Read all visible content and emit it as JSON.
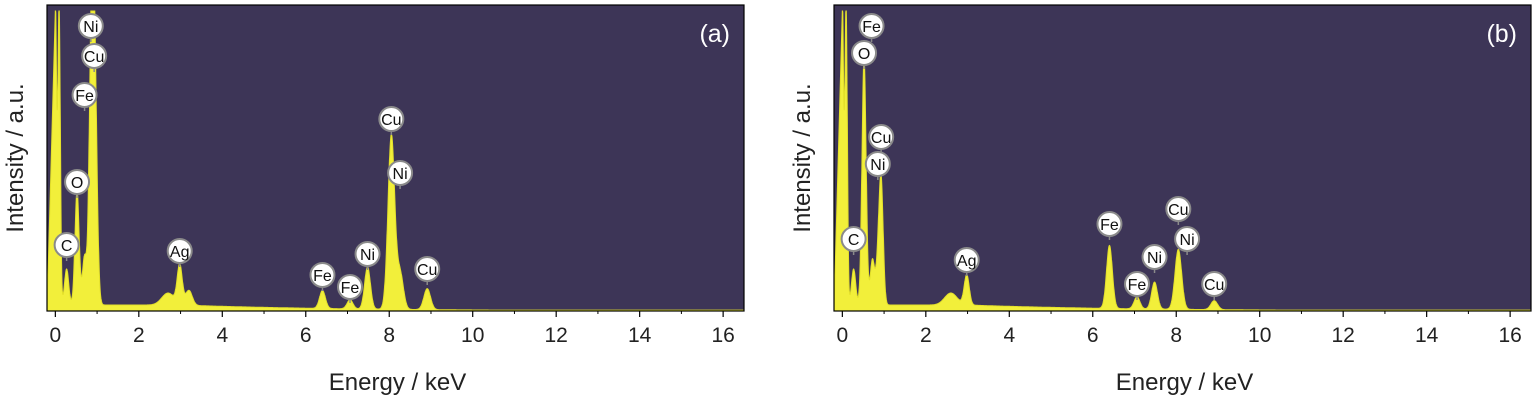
{
  "colors": {
    "plot_background": "#3d3557",
    "spectrum_fill": "#f2ef3a",
    "spectrum_stroke": "#e3e02a",
    "marker_fill": "#ffffff",
    "marker_stroke": "#8a8a8a",
    "axis": "#000000"
  },
  "chart_data": [
    {
      "type": "area",
      "panel_label": "(a)",
      "xlabel": "Energy / keV",
      "ylabel": "Intensity / a.u.",
      "xlim": [
        -0.2,
        16.5
      ],
      "ylim": [
        0,
        100
      ],
      "xticks": [
        0,
        2,
        4,
        6,
        8,
        10,
        12,
        14,
        16
      ],
      "y_ticks_shown": false,
      "grid": false,
      "background_level": 2,
      "spectrum": [
        {
          "energy": 0.0,
          "intensity": 100,
          "width": 0.03
        },
        {
          "energy": 0.09,
          "intensity": 100,
          "width": 0.03
        },
        {
          "energy": 0.27,
          "intensity": 12,
          "width": 0.05
        },
        {
          "energy": 0.52,
          "intensity": 38,
          "width": 0.05
        },
        {
          "energy": 0.7,
          "intensity": 16,
          "width": 0.05
        },
        {
          "energy": 0.85,
          "intensity": 60,
          "width": 0.05
        },
        {
          "energy": 0.93,
          "intensity": 92,
          "width": 0.06
        },
        {
          "energy": 2.7,
          "intensity": 4,
          "width": 0.15
        },
        {
          "energy": 2.98,
          "intensity": 13,
          "width": 0.06
        },
        {
          "energy": 3.2,
          "intensity": 5,
          "width": 0.08
        },
        {
          "energy": 6.4,
          "intensity": 6,
          "width": 0.07
        },
        {
          "energy": 7.06,
          "intensity": 3,
          "width": 0.07
        },
        {
          "energy": 7.48,
          "intensity": 14,
          "width": 0.07
        },
        {
          "energy": 8.05,
          "intensity": 58,
          "width": 0.08
        },
        {
          "energy": 8.26,
          "intensity": 12,
          "width": 0.08
        },
        {
          "energy": 8.91,
          "intensity": 7,
          "width": 0.08
        }
      ],
      "peak_labels": [
        {
          "label": "Ni",
          "energy": 0.85,
          "level": 95
        },
        {
          "label": "Cu",
          "energy": 0.93,
          "level": 85
        },
        {
          "label": "Fe",
          "energy": 0.7,
          "level": 72
        },
        {
          "label": "O",
          "energy": 0.52,
          "level": 43
        },
        {
          "label": "C",
          "energy": 0.27,
          "level": 22
        },
        {
          "label": "Ag",
          "energy": 2.98,
          "level": 20
        },
        {
          "label": "Cu",
          "energy": 8.05,
          "level": 64
        },
        {
          "label": "Ni",
          "energy": 7.48,
          "level": 19
        },
        {
          "label": "Fe",
          "energy": 6.4,
          "level": 12
        },
        {
          "label": "Fe",
          "energy": 7.06,
          "level": 8
        },
        {
          "label": "Ni",
          "energy": 8.26,
          "level": 46
        },
        {
          "label": "Cu",
          "energy": 8.91,
          "level": 14
        }
      ]
    },
    {
      "type": "area",
      "panel_label": "(b)",
      "xlabel": "Energy / keV",
      "ylabel": "Intensity / a.u.",
      "xlim": [
        -0.2,
        16.5
      ],
      "ylim": [
        0,
        100
      ],
      "xticks": [
        0,
        2,
        4,
        6,
        8,
        10,
        12,
        14,
        16
      ],
      "y_ticks_shown": false,
      "grid": false,
      "background_level": 2,
      "spectrum": [
        {
          "energy": 0.0,
          "intensity": 100,
          "width": 0.03
        },
        {
          "energy": 0.09,
          "intensity": 100,
          "width": 0.03
        },
        {
          "energy": 0.27,
          "intensity": 12,
          "width": 0.05
        },
        {
          "energy": 0.52,
          "intensity": 82,
          "width": 0.05
        },
        {
          "energy": 0.72,
          "intensity": 15,
          "width": 0.05
        },
        {
          "energy": 0.85,
          "intensity": 12,
          "width": 0.05
        },
        {
          "energy": 0.93,
          "intensity": 40,
          "width": 0.05
        },
        {
          "energy": 2.6,
          "intensity": 4,
          "width": 0.15
        },
        {
          "energy": 2.98,
          "intensity": 10,
          "width": 0.06
        },
        {
          "energy": 6.4,
          "intensity": 21,
          "width": 0.07
        },
        {
          "energy": 7.06,
          "intensity": 4,
          "width": 0.07
        },
        {
          "energy": 7.48,
          "intensity": 9,
          "width": 0.07
        },
        {
          "energy": 8.05,
          "intensity": 20,
          "width": 0.08
        },
        {
          "energy": 8.91,
          "intensity": 3,
          "width": 0.08
        }
      ],
      "peak_labels": [
        {
          "label": "Fe",
          "energy": 0.7,
          "level": 95
        },
        {
          "label": "O",
          "energy": 0.52,
          "level": 86
        },
        {
          "label": "Cu",
          "energy": 0.93,
          "level": 58
        },
        {
          "label": "Ni",
          "energy": 0.85,
          "level": 49
        },
        {
          "label": "C",
          "energy": 0.27,
          "level": 24
        },
        {
          "label": "Ag",
          "energy": 2.98,
          "level": 17
        },
        {
          "label": "Fe",
          "energy": 6.4,
          "level": 29
        },
        {
          "label": "Fe",
          "energy": 7.06,
          "level": 9
        },
        {
          "label": "Ni",
          "energy": 7.48,
          "level": 18
        },
        {
          "label": "Cu",
          "energy": 8.05,
          "level": 34
        },
        {
          "label": "Ni",
          "energy": 8.26,
          "level": 24
        },
        {
          "label": "Cu",
          "energy": 8.91,
          "level": 9
        }
      ]
    }
  ]
}
